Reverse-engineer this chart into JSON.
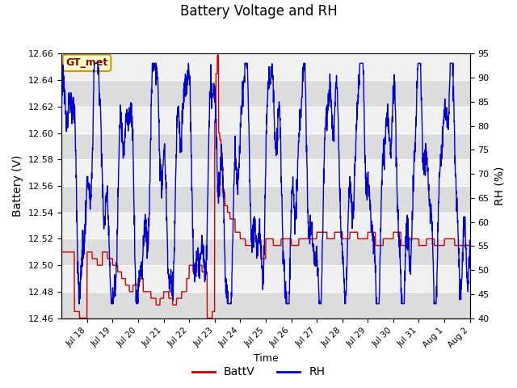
{
  "title": "Battery Voltage and RH",
  "xlabel": "Time",
  "ylabel_left": "Battery (V)",
  "ylabel_right": "RH (%)",
  "ylim_left": [
    12.46,
    12.66
  ],
  "ylim_right": [
    40,
    95
  ],
  "yticks_left": [
    12.46,
    12.48,
    12.5,
    12.52,
    12.54,
    12.56,
    12.58,
    12.6,
    12.62,
    12.64,
    12.66
  ],
  "yticks_right": [
    40,
    45,
    50,
    55,
    60,
    65,
    70,
    75,
    80,
    85,
    90,
    95
  ],
  "color_battv": "#cc0000",
  "color_rh": "#0000cc",
  "legend_label_battv": "BattV",
  "legend_label_rh": "RH",
  "bg_color": "#dcdcdc",
  "bg_color2": "#f0f0f0",
  "watermark_text": "GT_met",
  "watermark_bg": "#ffffcc",
  "watermark_border": "#cc9900",
  "xtick_labels": [
    "Jul 18",
    "Jul 19",
    "Jul 20",
    "Jul 21",
    "Jul 22",
    "Jul 23",
    "Jul 24",
    "Jul 25",
    "Jul 26",
    "Jul 27",
    "Jul 28",
    "Jul 29",
    "Jul 30",
    "Jul 31",
    "Aug 1",
    "Aug 2"
  ],
  "figsize": [
    6.4,
    4.8
  ],
  "dpi": 100
}
